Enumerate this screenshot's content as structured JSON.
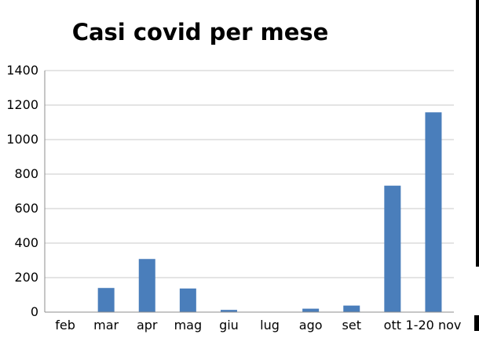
{
  "chart_data": {
    "type": "bar",
    "title": "Casi covid per mese",
    "xlabel": "",
    "ylabel": "",
    "categories": [
      "feb",
      "mar",
      "apr",
      "mag",
      "giu",
      "lug",
      "ago",
      "set",
      "ott",
      "1-20 nov"
    ],
    "values": [
      0,
      140,
      308,
      137,
      13,
      2,
      20,
      38,
      733,
      1158
    ],
    "ylim": [
      0,
      1400
    ],
    "yticks": [
      0,
      200,
      400,
      600,
      800,
      1000,
      1200,
      1400
    ],
    "grid": true,
    "legend": "none",
    "colors": {
      "bar": "#4a7ebb",
      "grid": "#c8c8c8",
      "axis": "#8c8c8c"
    }
  }
}
